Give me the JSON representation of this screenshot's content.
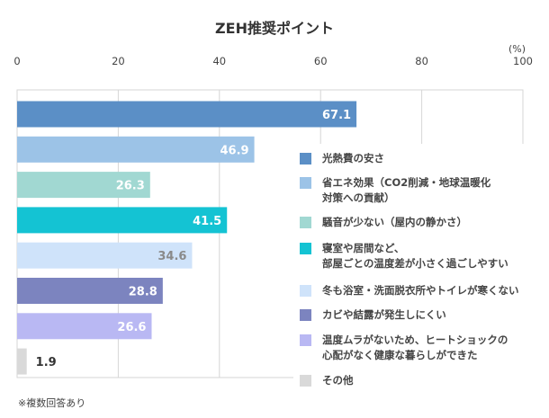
{
  "chart_data": {
    "type": "bar",
    "orientation": "horizontal",
    "title": "ZEH推奨ポイント",
    "xlabel": "(%)",
    "ylabel": "",
    "xlim": [
      0,
      100
    ],
    "xticks": [
      0,
      20,
      40,
      60,
      80,
      100
    ],
    "grid": true,
    "legend_position": "right",
    "categories": [
      "光熱費の安さ",
      "省エネ効果（CO2削減・地球温暖化\n対策への貢献）",
      "騒音が少ない（屋内の静かさ）",
      "寝室や居間など、\n部屋ごとの温度差が小さく過ごしやすい",
      "冬も浴室・洗面脱衣所やトイレが寒くない",
      "カビや結露が発生しにくい",
      "温度ムラがないため、ヒートショックの\n心配がなく健康な暮らしができた",
      "その他"
    ],
    "values": [
      67.1,
      46.9,
      26.3,
      41.5,
      34.6,
      28.8,
      26.6,
      1.9
    ],
    "value_labels": [
      "67.1",
      "46.9",
      "26.3",
      "41.5",
      "34.6",
      "28.8",
      "26.6",
      "1.9"
    ],
    "colors": [
      "#5b8fc6",
      "#9cc3e7",
      "#a1d8d2",
      "#14c3d3",
      "#cfe3fa",
      "#7c84bf",
      "#b9b8f3",
      "#d9d9d9"
    ],
    "label_colors": [
      "#ffffff",
      "#ffffff",
      "#ffffff",
      "#ffffff",
      "#8a8a8a",
      "#ffffff",
      "#ffffff",
      "#333333"
    ],
    "footnote": "※複数回答あり"
  }
}
